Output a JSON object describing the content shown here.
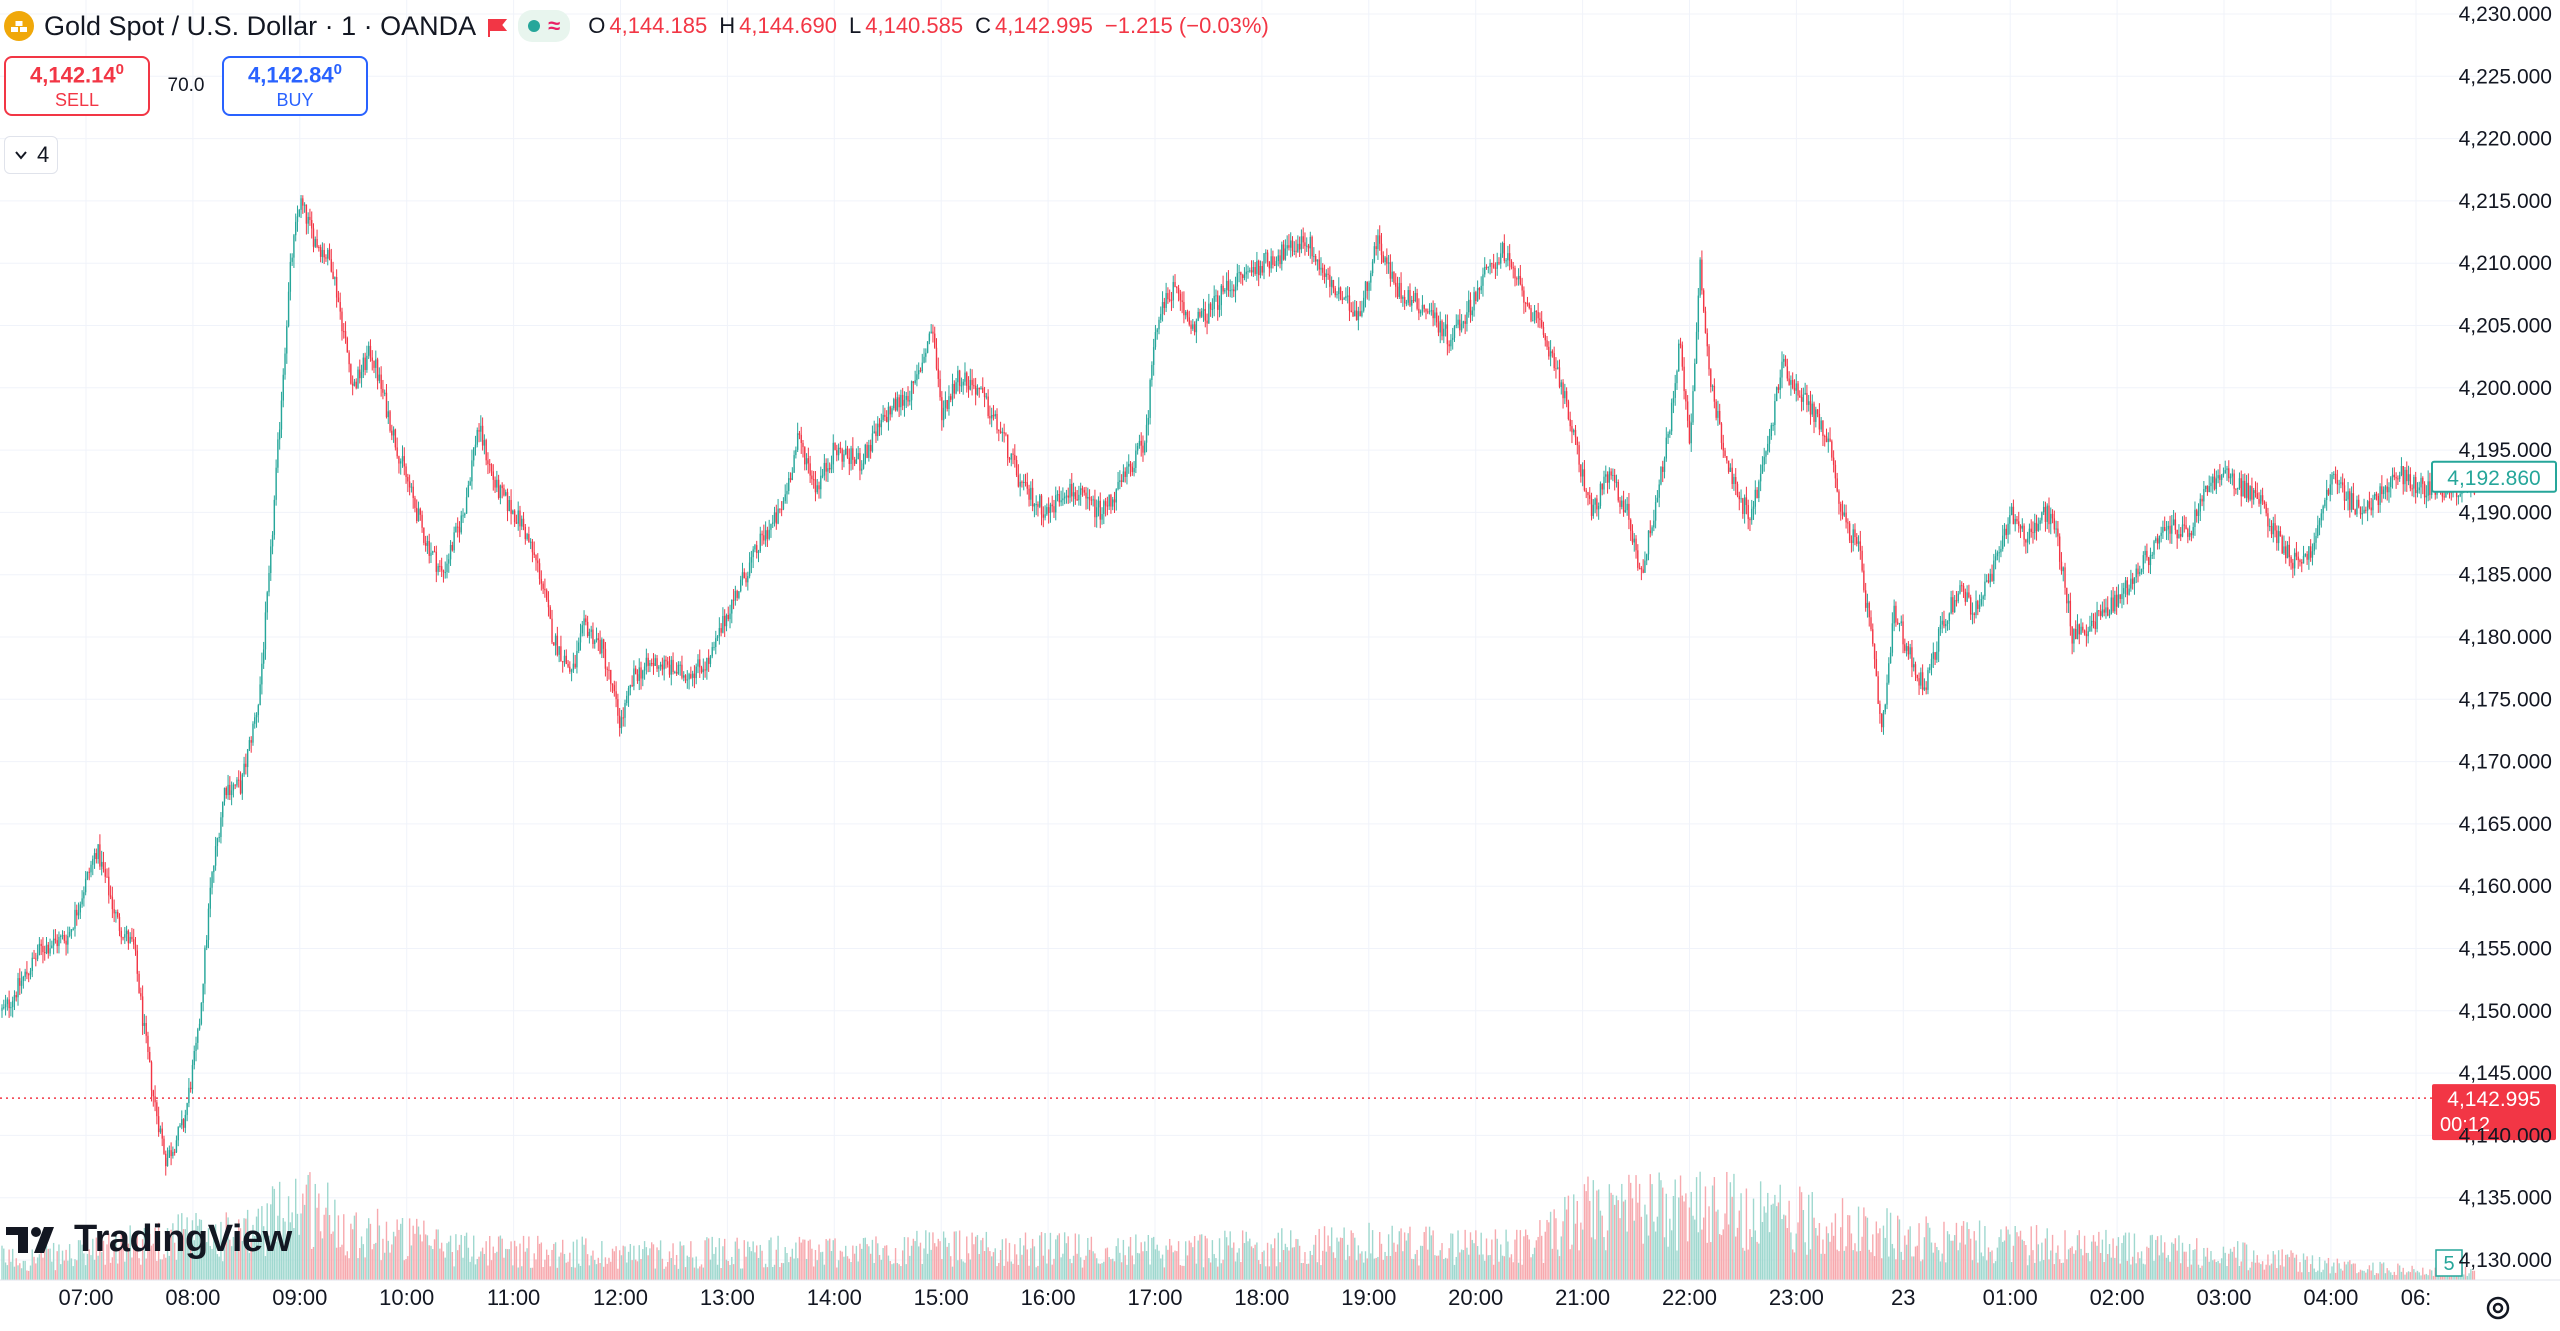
{
  "header": {
    "symbol_title": "Gold Spot / U.S. Dollar · 1 · OANDA",
    "ohlc": [
      {
        "key": "O",
        "value": "4,144.185"
      },
      {
        "key": "H",
        "value": "4,144.690"
      },
      {
        "key": "L",
        "value": "4,140.585"
      },
      {
        "key": "C",
        "value": "4,142.995"
      }
    ],
    "change": "−1.215 (−0.03%)"
  },
  "trade": {
    "sell_price": "4,142.14",
    "sell_superscript": "0",
    "sell_label": "SELL",
    "spread": "70.0",
    "buy_price": "4,142.84",
    "buy_superscript": "0",
    "buy_label": "BUY"
  },
  "indicators_toggle": {
    "count": "4"
  },
  "brand": {
    "name": "TradingView"
  },
  "icons": [
    "gold-coin-icon",
    "flag-icon",
    "status-dot-icon",
    "wave-icon",
    "chevron-down-icon",
    "tradingview-logo-icon",
    "settings-icon"
  ],
  "colors": {
    "up": "#26a69a",
    "down": "#f23645",
    "buy": "#2962ff",
    "current_price": "#f23645",
    "highlight_price": "#26a69a"
  },
  "chart_data": {
    "type": "candlestick",
    "symbol": "XAUUSD",
    "interval": "1",
    "grid": true,
    "ylim": [
      4130,
      4230
    ],
    "y_ticks": [
      "4,230.000",
      "4,225.000",
      "4,220.000",
      "4,215.000",
      "4,210.000",
      "4,205.000",
      "4,200.000",
      "4,195.000",
      "4,190.000",
      "4,185.000",
      "4,180.000",
      "4,175.000",
      "4,170.000",
      "4,165.000",
      "4,160.000",
      "4,155.000",
      "4,150.000",
      "4,145.000",
      "4,140.000",
      "4,135.000",
      "4,130.000"
    ],
    "x_ticks": [
      "07:00",
      "08:00",
      "09:00",
      "10:00",
      "11:00",
      "12:00",
      "13:00",
      "14:00",
      "15:00",
      "16:00",
      "17:00",
      "18:00",
      "19:00",
      "20:00",
      "21:00",
      "22:00",
      "23:00",
      "23",
      "01:00",
      "02:00",
      "03:00",
      "04:00",
      "06:"
    ],
    "current_price": {
      "value": 4142.995,
      "label": "4,142.995",
      "countdown": "00:12"
    },
    "highlight_price": {
      "value": 4192.86,
      "label": "4,192.860"
    },
    "volume_label": "5",
    "price_path": [
      {
        "t": "06:14",
        "price": 4150
      },
      {
        "t": "06:35",
        "price": 4155
      },
      {
        "t": "06:50",
        "price": 4156
      },
      {
        "t": "07:06",
        "price": 4163
      },
      {
        "t": "07:18",
        "price": 4157
      },
      {
        "t": "07:27",
        "price": 4155
      },
      {
        "t": "07:33",
        "price": 4148
      },
      {
        "t": "07:38",
        "price": 4143
      },
      {
        "t": "07:45",
        "price": 4138
      },
      {
        "t": "07:55",
        "price": 4141
      },
      {
        "t": "08:03",
        "price": 4148
      },
      {
        "t": "08:10",
        "price": 4160
      },
      {
        "t": "08:18",
        "price": 4168
      },
      {
        "t": "08:27",
        "price": 4168
      },
      {
        "t": "08:37",
        "price": 4175
      },
      {
        "t": "08:43",
        "price": 4185
      },
      {
        "t": "08:50",
        "price": 4200
      },
      {
        "t": "08:55",
        "price": 4210
      },
      {
        "t": "09:00",
        "price": 4215
      },
      {
        "t": "09:08",
        "price": 4212
      },
      {
        "t": "09:18",
        "price": 4210
      },
      {
        "t": "09:30",
        "price": 4200
      },
      {
        "t": "09:40",
        "price": 4203
      },
      {
        "t": "09:55",
        "price": 4195
      },
      {
        "t": "10:10",
        "price": 4188
      },
      {
        "t": "10:20",
        "price": 4185
      },
      {
        "t": "10:32",
        "price": 4190
      },
      {
        "t": "10:40",
        "price": 4197
      },
      {
        "t": "10:50",
        "price": 4192
      },
      {
        "t": "11:05",
        "price": 4189
      },
      {
        "t": "11:15",
        "price": 4185
      },
      {
        "t": "11:22",
        "price": 4180
      },
      {
        "t": "11:33",
        "price": 4177
      },
      {
        "t": "11:40",
        "price": 4181
      },
      {
        "t": "11:50",
        "price": 4179
      },
      {
        "t": "12:00",
        "price": 4173
      },
      {
        "t": "12:08",
        "price": 4177
      },
      {
        "t": "12:20",
        "price": 4178
      },
      {
        "t": "12:35",
        "price": 4177
      },
      {
        "t": "12:50",
        "price": 4178
      },
      {
        "t": "13:00",
        "price": 4182
      },
      {
        "t": "13:10",
        "price": 4185
      },
      {
        "t": "13:20",
        "price": 4188
      },
      {
        "t": "13:30",
        "price": 4190
      },
      {
        "t": "13:40",
        "price": 4196
      },
      {
        "t": "13:50",
        "price": 4192
      },
      {
        "t": "14:00",
        "price": 4195
      },
      {
        "t": "14:15",
        "price": 4194
      },
      {
        "t": "14:30",
        "price": 4198
      },
      {
        "t": "14:45",
        "price": 4200
      },
      {
        "t": "14:55",
        "price": 4205
      },
      {
        "t": "15:00",
        "price": 4198
      },
      {
        "t": "15:10",
        "price": 4201
      },
      {
        "t": "15:20",
        "price": 4200
      },
      {
        "t": "15:35",
        "price": 4196
      },
      {
        "t": "15:45",
        "price": 4192
      },
      {
        "t": "16:00",
        "price": 4190
      },
      {
        "t": "16:10",
        "price": 4192
      },
      {
        "t": "16:20",
        "price": 4191
      },
      {
        "t": "16:30",
        "price": 4190
      },
      {
        "t": "16:40",
        "price": 4192
      },
      {
        "t": "16:55",
        "price": 4196
      },
      {
        "t": "17:00",
        "price": 4205
      },
      {
        "t": "17:10",
        "price": 4208
      },
      {
        "t": "17:20",
        "price": 4205
      },
      {
        "t": "17:30",
        "price": 4206
      },
      {
        "t": "17:40",
        "price": 4208
      },
      {
        "t": "17:50",
        "price": 4209
      },
      {
        "t": "18:00",
        "price": 4210
      },
      {
        "t": "18:15",
        "price": 4211
      },
      {
        "t": "18:25",
        "price": 4212
      },
      {
        "t": "18:35",
        "price": 4209
      },
      {
        "t": "18:45",
        "price": 4207
      },
      {
        "t": "18:55",
        "price": 4206
      },
      {
        "t": "19:05",
        "price": 4212
      },
      {
        "t": "19:15",
        "price": 4208
      },
      {
        "t": "19:25",
        "price": 4207
      },
      {
        "t": "19:35",
        "price": 4206
      },
      {
        "t": "19:45",
        "price": 4204
      },
      {
        "t": "19:55",
        "price": 4206
      },
      {
        "t": "20:05",
        "price": 4209
      },
      {
        "t": "20:15",
        "price": 4211
      },
      {
        "t": "20:25",
        "price": 4208
      },
      {
        "t": "20:35",
        "price": 4205
      },
      {
        "t": "20:45",
        "price": 4202
      },
      {
        "t": "20:55",
        "price": 4196
      },
      {
        "t": "21:05",
        "price": 4190
      },
      {
        "t": "21:15",
        "price": 4193
      },
      {
        "t": "21:25",
        "price": 4190
      },
      {
        "t": "21:33",
        "price": 4185
      },
      {
        "t": "21:40",
        "price": 4190
      },
      {
        "t": "21:48",
        "price": 4196
      },
      {
        "t": "21:55",
        "price": 4204
      },
      {
        "t": "22:00",
        "price": 4195
      },
      {
        "t": "22:06",
        "price": 4210
      },
      {
        "t": "22:12",
        "price": 4200
      },
      {
        "t": "22:20",
        "price": 4195
      },
      {
        "t": "22:27",
        "price": 4191
      },
      {
        "t": "22:35",
        "price": 4190
      },
      {
        "t": "22:45",
        "price": 4196
      },
      {
        "t": "22:52",
        "price": 4202
      },
      {
        "t": "23:00",
        "price": 4200
      },
      {
        "t": "23:10",
        "price": 4198
      },
      {
        "t": "23:20",
        "price": 4195
      },
      {
        "t": "23:25",
        "price": 4190
      },
      {
        "t": "23:35",
        "price": 4187
      },
      {
        "t": "23:42",
        "price": 4180
      },
      {
        "t": "23:48",
        "price": 4172
      },
      {
        "t": "23:55",
        "price": 4182
      },
      {
        "t": "00:05",
        "price": 4178
      },
      {
        "t": "00:12",
        "price": 4176
      },
      {
        "t": "00:22",
        "price": 4181
      },
      {
        "t": "00:32",
        "price": 4184
      },
      {
        "t": "00:40",
        "price": 4182
      },
      {
        "t": "00:50",
        "price": 4185
      },
      {
        "t": "01:00",
        "price": 4190
      },
      {
        "t": "01:10",
        "price": 4188
      },
      {
        "t": "01:20",
        "price": 4190
      },
      {
        "t": "01:25",
        "price": 4189
      },
      {
        "t": "01:30",
        "price": 4185
      },
      {
        "t": "01:35",
        "price": 4180
      },
      {
        "t": "01:45",
        "price": 4181
      },
      {
        "t": "02:00",
        "price": 4183
      },
      {
        "t": "02:10",
        "price": 4185
      },
      {
        "t": "02:20",
        "price": 4187
      },
      {
        "t": "02:30",
        "price": 4189
      },
      {
        "t": "02:40",
        "price": 4188
      },
      {
        "t": "02:50",
        "price": 4192
      },
      {
        "t": "03:00",
        "price": 4193
      },
      {
        "t": "03:10",
        "price": 4192
      },
      {
        "t": "03:20",
        "price": 4191
      },
      {
        "t": "03:30",
        "price": 4188
      },
      {
        "t": "03:40",
        "price": 4186
      },
      {
        "t": "03:50",
        "price": 4187
      },
      {
        "t": "04:00",
        "price": 4193
      },
      {
        "t": "04:10",
        "price": 4191
      },
      {
        "t": "04:20",
        "price": 4190
      },
      {
        "t": "04:30",
        "price": 4192
      },
      {
        "t": "04:40",
        "price": 4193
      },
      {
        "t": "04:50",
        "price": 4192
      }
    ],
    "volume_profile": [
      {
        "t": "06:30",
        "level": 0.15
      },
      {
        "t": "07:00",
        "level": 0.18
      },
      {
        "t": "07:50",
        "level": 0.3
      },
      {
        "t": "08:30",
        "level": 0.3
      },
      {
        "t": "09:00",
        "level": 0.55
      },
      {
        "t": "09:30",
        "level": 0.35
      },
      {
        "t": "10:30",
        "level": 0.22
      },
      {
        "t": "12:00",
        "level": 0.18
      },
      {
        "t": "14:00",
        "level": 0.2
      },
      {
        "t": "15:00",
        "level": 0.22
      },
      {
        "t": "17:00",
        "level": 0.2
      },
      {
        "t": "19:00",
        "level": 0.25
      },
      {
        "t": "20:30",
        "level": 0.22
      },
      {
        "t": "21:00",
        "level": 0.45
      },
      {
        "t": "22:00",
        "level": 0.5
      },
      {
        "t": "23:00",
        "level": 0.42
      },
      {
        "t": "00:00",
        "level": 0.3
      },
      {
        "t": "01:00",
        "level": 0.25
      },
      {
        "t": "03:00",
        "level": 0.18
      },
      {
        "t": "04:00",
        "level": 0.1
      },
      {
        "t": "04:55",
        "level": 0.06
      }
    ]
  }
}
